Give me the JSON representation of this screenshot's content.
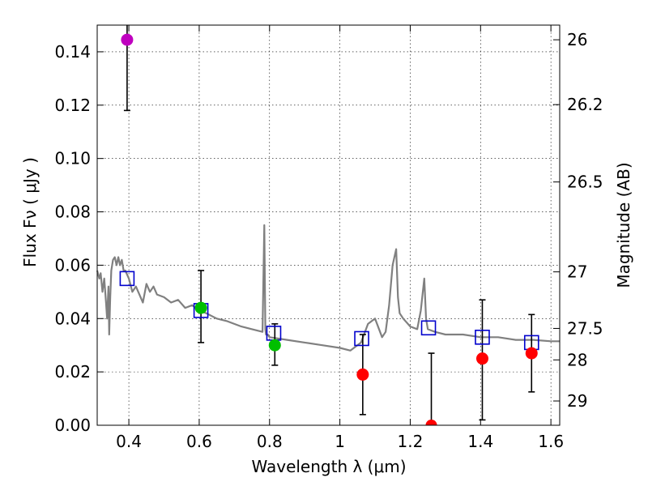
{
  "chart_data": {
    "type": "scatter",
    "xlabel": "Wavelength  λ (μm)",
    "ylabel": "Flux  Fν  ( μJy )",
    "y2label": "Magnitude (AB)",
    "xlim": [
      0.31,
      1.625
    ],
    "ylim": [
      0.0,
      0.15
    ],
    "xticks": [
      0.4,
      0.6,
      0.8,
      1.0,
      1.2,
      1.4,
      1.6
    ],
    "xtick_labels": [
      "0.4",
      "0.6",
      "0.8",
      "1",
      "1.2",
      "1.4",
      "1.6"
    ],
    "yticks": [
      0.0,
      0.02,
      0.04,
      0.06,
      0.08,
      0.1,
      0.12,
      0.14
    ],
    "ytick_labels": [
      "0.00",
      "0.02",
      "0.04",
      "0.06",
      "0.08",
      "0.10",
      "0.12",
      "0.14"
    ],
    "mag_ticks": [
      {
        "flux": 0.1445,
        "label": "26"
      },
      {
        "flux": 0.1202,
        "label": "26.2"
      },
      {
        "flux": 0.0912,
        "label": "26.5"
      },
      {
        "flux": 0.0575,
        "label": "27"
      },
      {
        "flux": 0.0363,
        "label": "27.5"
      },
      {
        "flux": 0.0245,
        "label": "28"
      },
      {
        "flux": 0.0091,
        "label": "29"
      }
    ],
    "grid": true,
    "colors": {
      "model": "#808080",
      "model_points": "#0000cc",
      "errorbar": "#000000",
      "magenta": "#bf00bf",
      "green": "#00bf00",
      "red": "#ff0000"
    },
    "observed": [
      {
        "x": 0.395,
        "y": 0.1445,
        "err_low": 0.118,
        "err_high": 0.152,
        "color": "magenta"
      },
      {
        "x": 0.605,
        "y": 0.044,
        "err_low": 0.031,
        "err_high": 0.058,
        "color": "green"
      },
      {
        "x": 0.815,
        "y": 0.03,
        "err_low": 0.0225,
        "err_high": 0.038,
        "color": "green"
      },
      {
        "x": 1.065,
        "y": 0.019,
        "err_low": 0.004,
        "err_high": 0.034,
        "color": "red"
      },
      {
        "x": 1.26,
        "y": 0.0,
        "err_low": -0.02,
        "err_high": 0.027,
        "color": "red"
      },
      {
        "x": 1.405,
        "y": 0.025,
        "err_low": 0.002,
        "err_high": 0.047,
        "color": "red"
      },
      {
        "x": 1.545,
        "y": 0.027,
        "err_low": 0.0125,
        "err_high": 0.0415,
        "color": "red"
      }
    ],
    "model_points": [
      {
        "x": 0.395,
        "y": 0.055
      },
      {
        "x": 0.605,
        "y": 0.043
      },
      {
        "x": 0.812,
        "y": 0.0345
      },
      {
        "x": 1.062,
        "y": 0.0325
      },
      {
        "x": 1.252,
        "y": 0.0365
      },
      {
        "x": 1.405,
        "y": 0.033
      },
      {
        "x": 1.545,
        "y": 0.031
      }
    ],
    "model_spectrum": {
      "x": [
        0.31,
        0.316,
        0.32,
        0.325,
        0.33,
        0.335,
        0.338,
        0.342,
        0.344,
        0.347,
        0.35,
        0.355,
        0.36,
        0.365,
        0.37,
        0.375,
        0.38,
        0.385,
        0.39,
        0.4,
        0.41,
        0.42,
        0.43,
        0.44,
        0.45,
        0.46,
        0.47,
        0.48,
        0.5,
        0.52,
        0.54,
        0.56,
        0.58,
        0.6,
        0.62,
        0.65,
        0.68,
        0.7,
        0.72,
        0.75,
        0.78,
        0.785,
        0.788,
        0.79,
        0.795,
        0.8,
        0.85,
        0.9,
        0.95,
        1.0,
        1.03,
        1.06,
        1.08,
        1.1,
        1.12,
        1.13,
        1.14,
        1.15,
        1.16,
        1.165,
        1.17,
        1.18,
        1.2,
        1.22,
        1.23,
        1.24,
        1.245,
        1.25,
        1.27,
        1.3,
        1.35,
        1.4,
        1.45,
        1.5,
        1.55,
        1.6,
        1.625
      ],
      "y": [
        0.058,
        0.055,
        0.057,
        0.05,
        0.055,
        0.046,
        0.04,
        0.052,
        0.034,
        0.048,
        0.058,
        0.062,
        0.063,
        0.06,
        0.063,
        0.06,
        0.062,
        0.058,
        0.058,
        0.055,
        0.05,
        0.052,
        0.049,
        0.046,
        0.053,
        0.05,
        0.052,
        0.049,
        0.048,
        0.046,
        0.047,
        0.044,
        0.045,
        0.043,
        0.042,
        0.04,
        0.039,
        0.038,
        0.037,
        0.036,
        0.035,
        0.075,
        0.036,
        0.034,
        0.034,
        0.033,
        0.032,
        0.031,
        0.03,
        0.029,
        0.028,
        0.031,
        0.038,
        0.04,
        0.033,
        0.035,
        0.045,
        0.06,
        0.066,
        0.048,
        0.042,
        0.04,
        0.037,
        0.036,
        0.043,
        0.055,
        0.04,
        0.036,
        0.035,
        0.034,
        0.034,
        0.033,
        0.033,
        0.032,
        0.032,
        0.0315,
        0.0315
      ]
    }
  }
}
